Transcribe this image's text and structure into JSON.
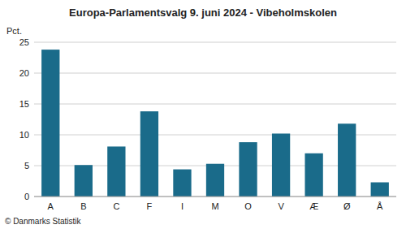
{
  "chart_data": {
    "type": "bar",
    "title": "Europa-Parlamentsvalg 9. juni 2024 - Vibeholmskolen",
    "ylabel": "Pct.",
    "footer": "© Danmarks Statistik",
    "categories": [
      "A",
      "B",
      "C",
      "F",
      "I",
      "M",
      "O",
      "V",
      "Æ",
      "Ø",
      "Å"
    ],
    "values": [
      23.8,
      5.1,
      8.1,
      13.8,
      4.4,
      5.3,
      8.8,
      10.2,
      7.0,
      11.8,
      2.3
    ],
    "color": "#1a6b8a",
    "ylim": [
      0,
      25
    ],
    "yticks": [
      0,
      5,
      10,
      15,
      20,
      25
    ],
    "grid": true
  }
}
